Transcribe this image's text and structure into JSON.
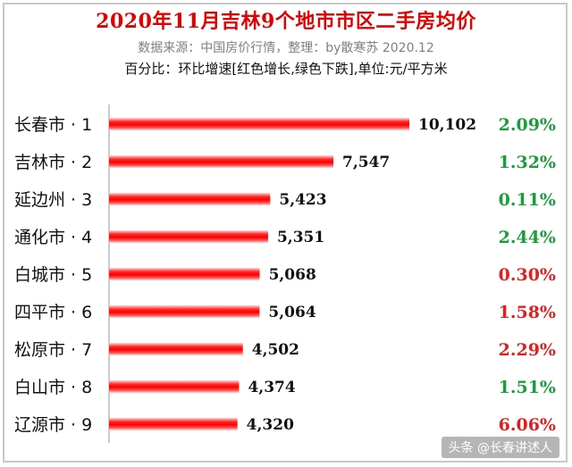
{
  "chart_data": {
    "type": "bar",
    "title": "2020年11月吉林9个地市市区二手房均价",
    "subtitle": "数据来源：中国房价行情，整理：by散寒苏 2020.12",
    "note": "百分比：环比增速[红色增长,绿色下跌],单位:元/平方米",
    "categories": [
      "长春市 · 1",
      "吉林市 · 2",
      "延边州 · 3",
      "通化市 · 4",
      "白城市 · 5",
      "四平市 · 6",
      "松原市 · 7",
      "白山市 · 8",
      "辽源市 · 9"
    ],
    "values": [
      10102,
      7547,
      5423,
      5351,
      5068,
      5064,
      4502,
      4374,
      4320
    ],
    "value_labels": [
      "10,102",
      "7,547",
      "5,423",
      "5,351",
      "5,068",
      "5,064",
      "4,502",
      "4,374",
      "4,320"
    ],
    "pct_labels": [
      "2.09%",
      "1.32%",
      "0.11%",
      "2.44%",
      "0.30%",
      "1.58%",
      "2.29%",
      "1.51%",
      "6.06%"
    ],
    "pct_colors": [
      "#1a9e3c",
      "#1a9e3c",
      "#1a9e3c",
      "#1a9e3c",
      "#e02020",
      "#e02020",
      "#e02020",
      "#1a9e3c",
      "#e02020"
    ],
    "bar_color": "#ff1a1a",
    "xlim": [
      0,
      10102
    ],
    "grid": false,
    "legend": "none"
  },
  "watermark": "头条 @长春讲述人"
}
